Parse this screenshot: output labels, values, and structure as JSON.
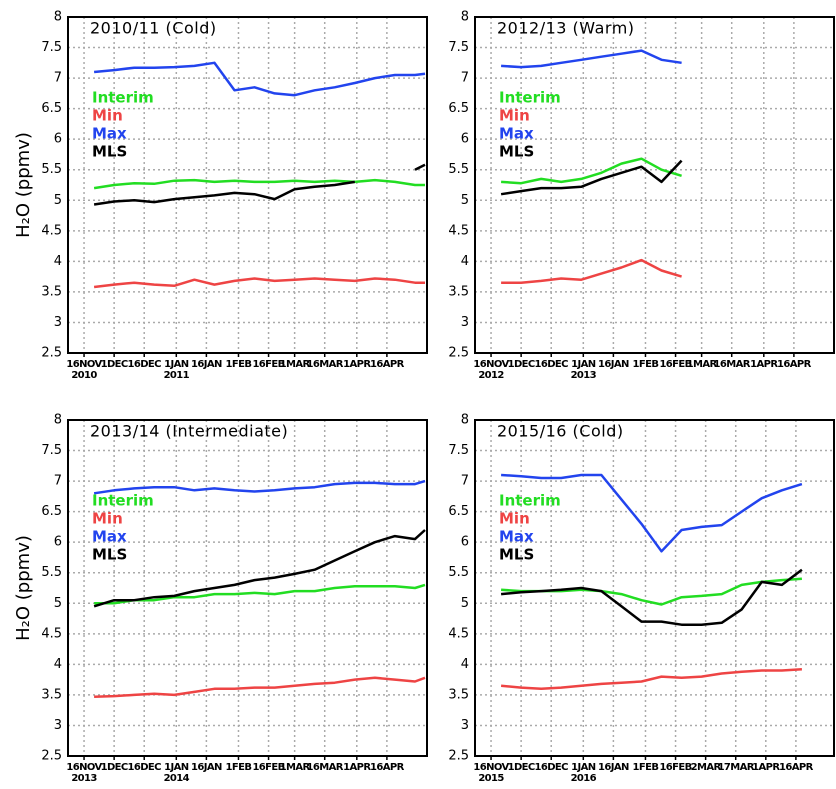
{
  "chart_data": [
    {
      "type": "line",
      "title": "2010/11 (Cold)",
      "ylabel": "H₂O (ppmv)",
      "x": [
        20,
        30,
        40,
        50,
        60,
        70,
        80,
        90,
        100,
        110,
        120,
        130,
        140,
        150,
        160,
        170,
        180,
        185
      ],
      "series": [
        {
          "name": "Interim",
          "color": "#22dd22",
          "values": [
            5.2,
            5.25,
            5.28,
            5.27,
            5.32,
            5.33,
            5.3,
            5.32,
            5.3,
            5.3,
            5.32,
            5.3,
            5.32,
            5.3,
            5.33,
            5.3,
            5.25,
            5.25
          ]
        },
        {
          "name": "Min",
          "color": "#ee4444",
          "values": [
            3.58,
            3.62,
            3.65,
            3.62,
            3.6,
            3.7,
            3.62,
            3.68,
            3.72,
            3.68,
            3.7,
            3.72,
            3.7,
            3.68,
            3.72,
            3.7,
            3.65,
            3.65
          ]
        },
        {
          "name": "Max",
          "color": "#2244ee",
          "values": [
            7.1,
            7.13,
            7.17,
            7.17,
            7.18,
            7.2,
            7.25,
            6.8,
            6.85,
            6.75,
            6.72,
            6.8,
            6.85,
            6.92,
            7.0,
            7.05,
            7.05,
            7.07
          ]
        },
        {
          "name": "MLS",
          "color": "#000000",
          "values": [
            4.93,
            4.98,
            5.0,
            4.97,
            5.02,
            5.05,
            5.08,
            5.12,
            5.1,
            5.02,
            5.18,
            5.22,
            5.25,
            5.3,
            null,
            null,
            5.5,
            5.58
          ]
        }
      ],
      "xlim": [
        7,
        186
      ],
      "ylim": [
        2.5,
        8
      ],
      "xticks": [
        {
          "value": 15,
          "label": "16NOV"
        },
        {
          "value": 30,
          "label": "1DEC"
        },
        {
          "value": 45,
          "label": "16DEC"
        },
        {
          "value": 61,
          "label": "1JAN"
        },
        {
          "value": 76,
          "label": "16JAN"
        },
        {
          "value": 92,
          "label": "1FEB"
        },
        {
          "value": 107,
          "label": "16FEB"
        },
        {
          "value": 120,
          "label": "1MAR"
        },
        {
          "value": 135,
          "label": "16MAR"
        },
        {
          "value": 151,
          "label": "1APR"
        },
        {
          "value": 166,
          "label": "16APR"
        }
      ],
      "year_labels": [
        {
          "value": 15,
          "label": "2010"
        },
        {
          "value": 61,
          "label": "2011"
        }
      ],
      "yticks": [
        2.5,
        3,
        3.5,
        4,
        4.5,
        5,
        5.5,
        6,
        6.5,
        7,
        7.5,
        8
      ],
      "grid": true
    },
    {
      "type": "line",
      "title": "2012/13 (Warm)",
      "x": [
        20,
        30,
        40,
        50,
        60,
        70,
        80,
        90,
        100,
        110,
        120,
        130,
        140,
        150,
        160,
        170,
        180,
        185
      ],
      "series": [
        {
          "name": "Interim",
          "color": "#22dd22",
          "values": [
            5.3,
            5.28,
            5.35,
            5.3,
            5.35,
            5.45,
            5.6,
            5.68,
            5.5,
            5.4,
            null,
            null,
            null,
            null,
            null,
            null,
            null,
            null
          ]
        },
        {
          "name": "Min",
          "color": "#ee4444",
          "values": [
            3.65,
            3.65,
            3.68,
            3.72,
            3.7,
            3.8,
            3.9,
            4.02,
            3.85,
            3.75,
            null,
            null,
            null,
            null,
            null,
            null,
            null,
            null
          ]
        },
        {
          "name": "Max",
          "color": "#2244ee",
          "values": [
            7.2,
            7.18,
            7.2,
            7.25,
            7.3,
            7.35,
            7.4,
            7.45,
            7.3,
            7.25,
            null,
            null,
            null,
            null,
            null,
            null,
            null,
            null
          ]
        },
        {
          "name": "MLS",
          "color": "#000000",
          "values": [
            5.1,
            5.15,
            5.2,
            5.2,
            5.22,
            5.35,
            5.45,
            5.55,
            5.3,
            5.65,
            null,
            null,
            null,
            null,
            null,
            null,
            null,
            null
          ]
        }
      ],
      "xlim": [
        7,
        186
      ],
      "ylim": [
        2.5,
        8
      ],
      "xticks": [
        {
          "value": 15,
          "label": "16NOV"
        },
        {
          "value": 30,
          "label": "1DEC"
        },
        {
          "value": 45,
          "label": "16DEC"
        },
        {
          "value": 61,
          "label": "1JAN"
        },
        {
          "value": 76,
          "label": "16JAN"
        },
        {
          "value": 92,
          "label": "1FEB"
        },
        {
          "value": 107,
          "label": "16FEB"
        },
        {
          "value": 120,
          "label": "1MAR"
        },
        {
          "value": 135,
          "label": "16MAR"
        },
        {
          "value": 151,
          "label": "1APR"
        },
        {
          "value": 166,
          "label": "16APR"
        }
      ],
      "year_labels": [
        {
          "value": 15,
          "label": "2012"
        },
        {
          "value": 61,
          "label": "2013"
        }
      ],
      "yticks": [
        2.5,
        3,
        3.5,
        4,
        4.5,
        5,
        5.5,
        6,
        6.5,
        7,
        7.5,
        8
      ],
      "grid": true
    },
    {
      "type": "line",
      "title": "2013/14 (Intermediate)",
      "ylabel": "H₂O (ppmv)",
      "x": [
        20,
        30,
        40,
        50,
        60,
        70,
        80,
        90,
        100,
        110,
        120,
        130,
        140,
        150,
        160,
        170,
        180,
        185
      ],
      "series": [
        {
          "name": "Interim",
          "color": "#22dd22",
          "values": [
            5.0,
            5.0,
            5.05,
            5.05,
            5.1,
            5.1,
            5.15,
            5.15,
            5.17,
            5.15,
            5.2,
            5.2,
            5.25,
            5.28,
            5.28,
            5.28,
            5.25,
            5.3
          ]
        },
        {
          "name": "Min",
          "color": "#ee4444",
          "values": [
            3.47,
            3.48,
            3.5,
            3.52,
            3.5,
            3.55,
            3.6,
            3.6,
            3.62,
            3.62,
            3.65,
            3.68,
            3.7,
            3.75,
            3.78,
            3.75,
            3.72,
            3.78
          ]
        },
        {
          "name": "Max",
          "color": "#2244ee",
          "values": [
            6.8,
            6.85,
            6.88,
            6.9,
            6.9,
            6.85,
            6.88,
            6.85,
            6.83,
            6.85,
            6.88,
            6.9,
            6.95,
            6.97,
            6.97,
            6.95,
            6.95,
            7.0
          ]
        },
        {
          "name": "MLS",
          "color": "#000000",
          "values": [
            4.95,
            5.05,
            5.05,
            5.1,
            5.12,
            5.2,
            5.25,
            5.3,
            5.38,
            5.42,
            5.48,
            5.55,
            5.7,
            5.85,
            6.0,
            6.1,
            6.05,
            6.2
          ]
        }
      ],
      "xlim": [
        7,
        186
      ],
      "ylim": [
        2.5,
        8
      ],
      "xticks": [
        {
          "value": 15,
          "label": "16NOV"
        },
        {
          "value": 30,
          "label": "1DEC"
        },
        {
          "value": 45,
          "label": "16DEC"
        },
        {
          "value": 61,
          "label": "1JAN"
        },
        {
          "value": 76,
          "label": "16JAN"
        },
        {
          "value": 92,
          "label": "1FEB"
        },
        {
          "value": 107,
          "label": "16FEB"
        },
        {
          "value": 120,
          "label": "1MAR"
        },
        {
          "value": 135,
          "label": "16MAR"
        },
        {
          "value": 151,
          "label": "1APR"
        },
        {
          "value": 166,
          "label": "16APR"
        }
      ],
      "year_labels": [
        {
          "value": 15,
          "label": "2013"
        },
        {
          "value": 61,
          "label": "2014"
        }
      ],
      "yticks": [
        2.5,
        3,
        3.5,
        4,
        4.5,
        5,
        5.5,
        6,
        6.5,
        7,
        7.5,
        8
      ],
      "grid": true
    },
    {
      "type": "line",
      "title": "2015/16 (Cold)",
      "x": [
        20,
        30,
        40,
        50,
        60,
        70,
        80,
        90,
        100,
        110,
        120,
        130,
        140,
        150,
        160,
        170,
        180,
        185
      ],
      "series": [
        {
          "name": "Interim",
          "color": "#22dd22",
          "values": [
            5.22,
            5.2,
            5.2,
            5.2,
            5.22,
            5.2,
            5.15,
            5.05,
            4.98,
            5.1,
            5.12,
            5.15,
            5.3,
            5.35,
            5.38,
            5.4,
            null,
            null
          ]
        },
        {
          "name": "Min",
          "color": "#ee4444",
          "values": [
            3.65,
            3.62,
            3.6,
            3.62,
            3.65,
            3.68,
            3.7,
            3.72,
            3.8,
            3.78,
            3.8,
            3.85,
            3.88,
            3.9,
            3.9,
            3.92,
            null,
            null
          ]
        },
        {
          "name": "Max",
          "color": "#2244ee",
          "values": [
            7.1,
            7.08,
            7.05,
            7.05,
            7.1,
            7.1,
            6.7,
            6.3,
            5.85,
            6.2,
            6.25,
            6.28,
            6.5,
            6.72,
            6.85,
            6.95,
            null,
            null
          ]
        },
        {
          "name": "MLS",
          "color": "#000000",
          "values": [
            5.15,
            5.18,
            5.2,
            5.22,
            5.25,
            5.2,
            4.95,
            4.7,
            4.7,
            4.65,
            4.65,
            4.68,
            4.9,
            5.35,
            5.3,
            5.55,
            null,
            null
          ]
        }
      ],
      "xlim": [
        7,
        186
      ],
      "ylim": [
        2.5,
        8
      ],
      "xticks": [
        {
          "value": 15,
          "label": "16NOV"
        },
        {
          "value": 30,
          "label": "1DEC"
        },
        {
          "value": 45,
          "label": "16DEC"
        },
        {
          "value": 61,
          "label": "1JAN"
        },
        {
          "value": 76,
          "label": "16JAN"
        },
        {
          "value": 92,
          "label": "1FEB"
        },
        {
          "value": 107,
          "label": "16FEB"
        },
        {
          "value": 122,
          "label": "2MAR"
        },
        {
          "value": 137,
          "label": "17MAR"
        },
        {
          "value": 152,
          "label": "1APR"
        },
        {
          "value": 167,
          "label": "16APR"
        }
      ],
      "year_labels": [
        {
          "value": 15,
          "label": "2015"
        },
        {
          "value": 61,
          "label": "2016"
        }
      ],
      "yticks": [
        2.5,
        3,
        3.5,
        4,
        4.5,
        5,
        5.5,
        6,
        6.5,
        7,
        7.5,
        8
      ],
      "grid": true
    }
  ]
}
